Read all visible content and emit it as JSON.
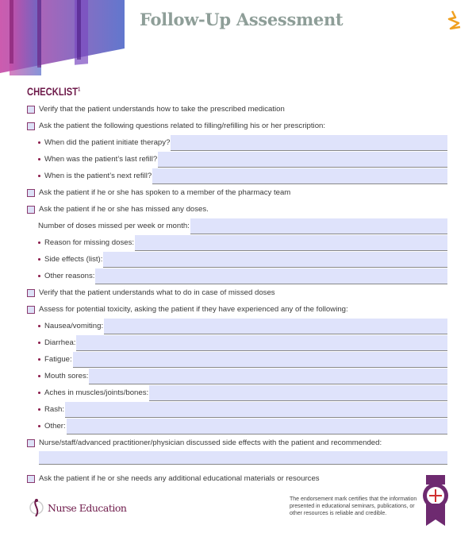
{
  "header": {
    "title": "Follow-Up Assessment",
    "logo_icon": "brand-logo-icon",
    "accent": "#6e1a4a",
    "field_color": "#dfe3fb"
  },
  "checklist": {
    "heading": "CHECKLIST",
    "footnote": "1",
    "items": [
      {
        "type": "check",
        "label": "Verify that the patient understands how to take the prescribed medication"
      },
      {
        "type": "check",
        "label": "Ask the patient the following questions related to filling/refilling his or her prescription:"
      },
      {
        "type": "bullet",
        "label": "When did the patient initiate therapy?",
        "field": ""
      },
      {
        "type": "bullet",
        "label": "When was the patient’s last refill?",
        "field": ""
      },
      {
        "type": "bullet",
        "label": "When is the patient’s next refill?",
        "field": ""
      },
      {
        "type": "check",
        "label": "Ask the patient if he or she has spoken to a member of the pharmacy team"
      },
      {
        "type": "check",
        "label": "Ask the patient if he or she has missed any doses."
      },
      {
        "type": "plain",
        "label": "Number of doses missed per week or month:",
        "field": ""
      },
      {
        "type": "bullet",
        "label": "Reason for missing doses:",
        "field": ""
      },
      {
        "type": "bullet",
        "label": "Side effects (list):",
        "field": ""
      },
      {
        "type": "bullet",
        "label": "Other reasons:",
        "field": ""
      },
      {
        "type": "check",
        "label": "Verify that the patient understands what to do in case of missed doses"
      },
      {
        "type": "check",
        "label": "Assess for potential toxicity, asking the patient if they have experienced any of the following:"
      },
      {
        "type": "bullet",
        "label": "Nausea/vomiting:",
        "field": ""
      },
      {
        "type": "bullet",
        "label": "Diarrhea:",
        "field": ""
      },
      {
        "type": "bullet",
        "label": "Fatigue:",
        "field": ""
      },
      {
        "type": "bullet",
        "label": "Mouth sores:",
        "field": ""
      },
      {
        "type": "bullet",
        "label": "Aches in muscles/joints/bones:",
        "field": ""
      },
      {
        "type": "bullet",
        "label": "Rash:",
        "field": ""
      },
      {
        "type": "bullet",
        "label": "Other:",
        "field": ""
      },
      {
        "type": "check",
        "label": "Nurse/staff/advanced practitioner/physician discussed side effects with the patient and recommended:"
      },
      {
        "type": "fullfield",
        "field": ""
      },
      {
        "type": "check",
        "label": "Ask the patient if he or she needs any additional educational materials or resources"
      }
    ]
  },
  "footer": {
    "brand": "Nurse Education",
    "endorsement_text": "The endorsement mark certifies that the information presented in educational seminars, publications, or other resources is reliable and credible.",
    "badge_icon": "endorsement-badge-icon"
  }
}
